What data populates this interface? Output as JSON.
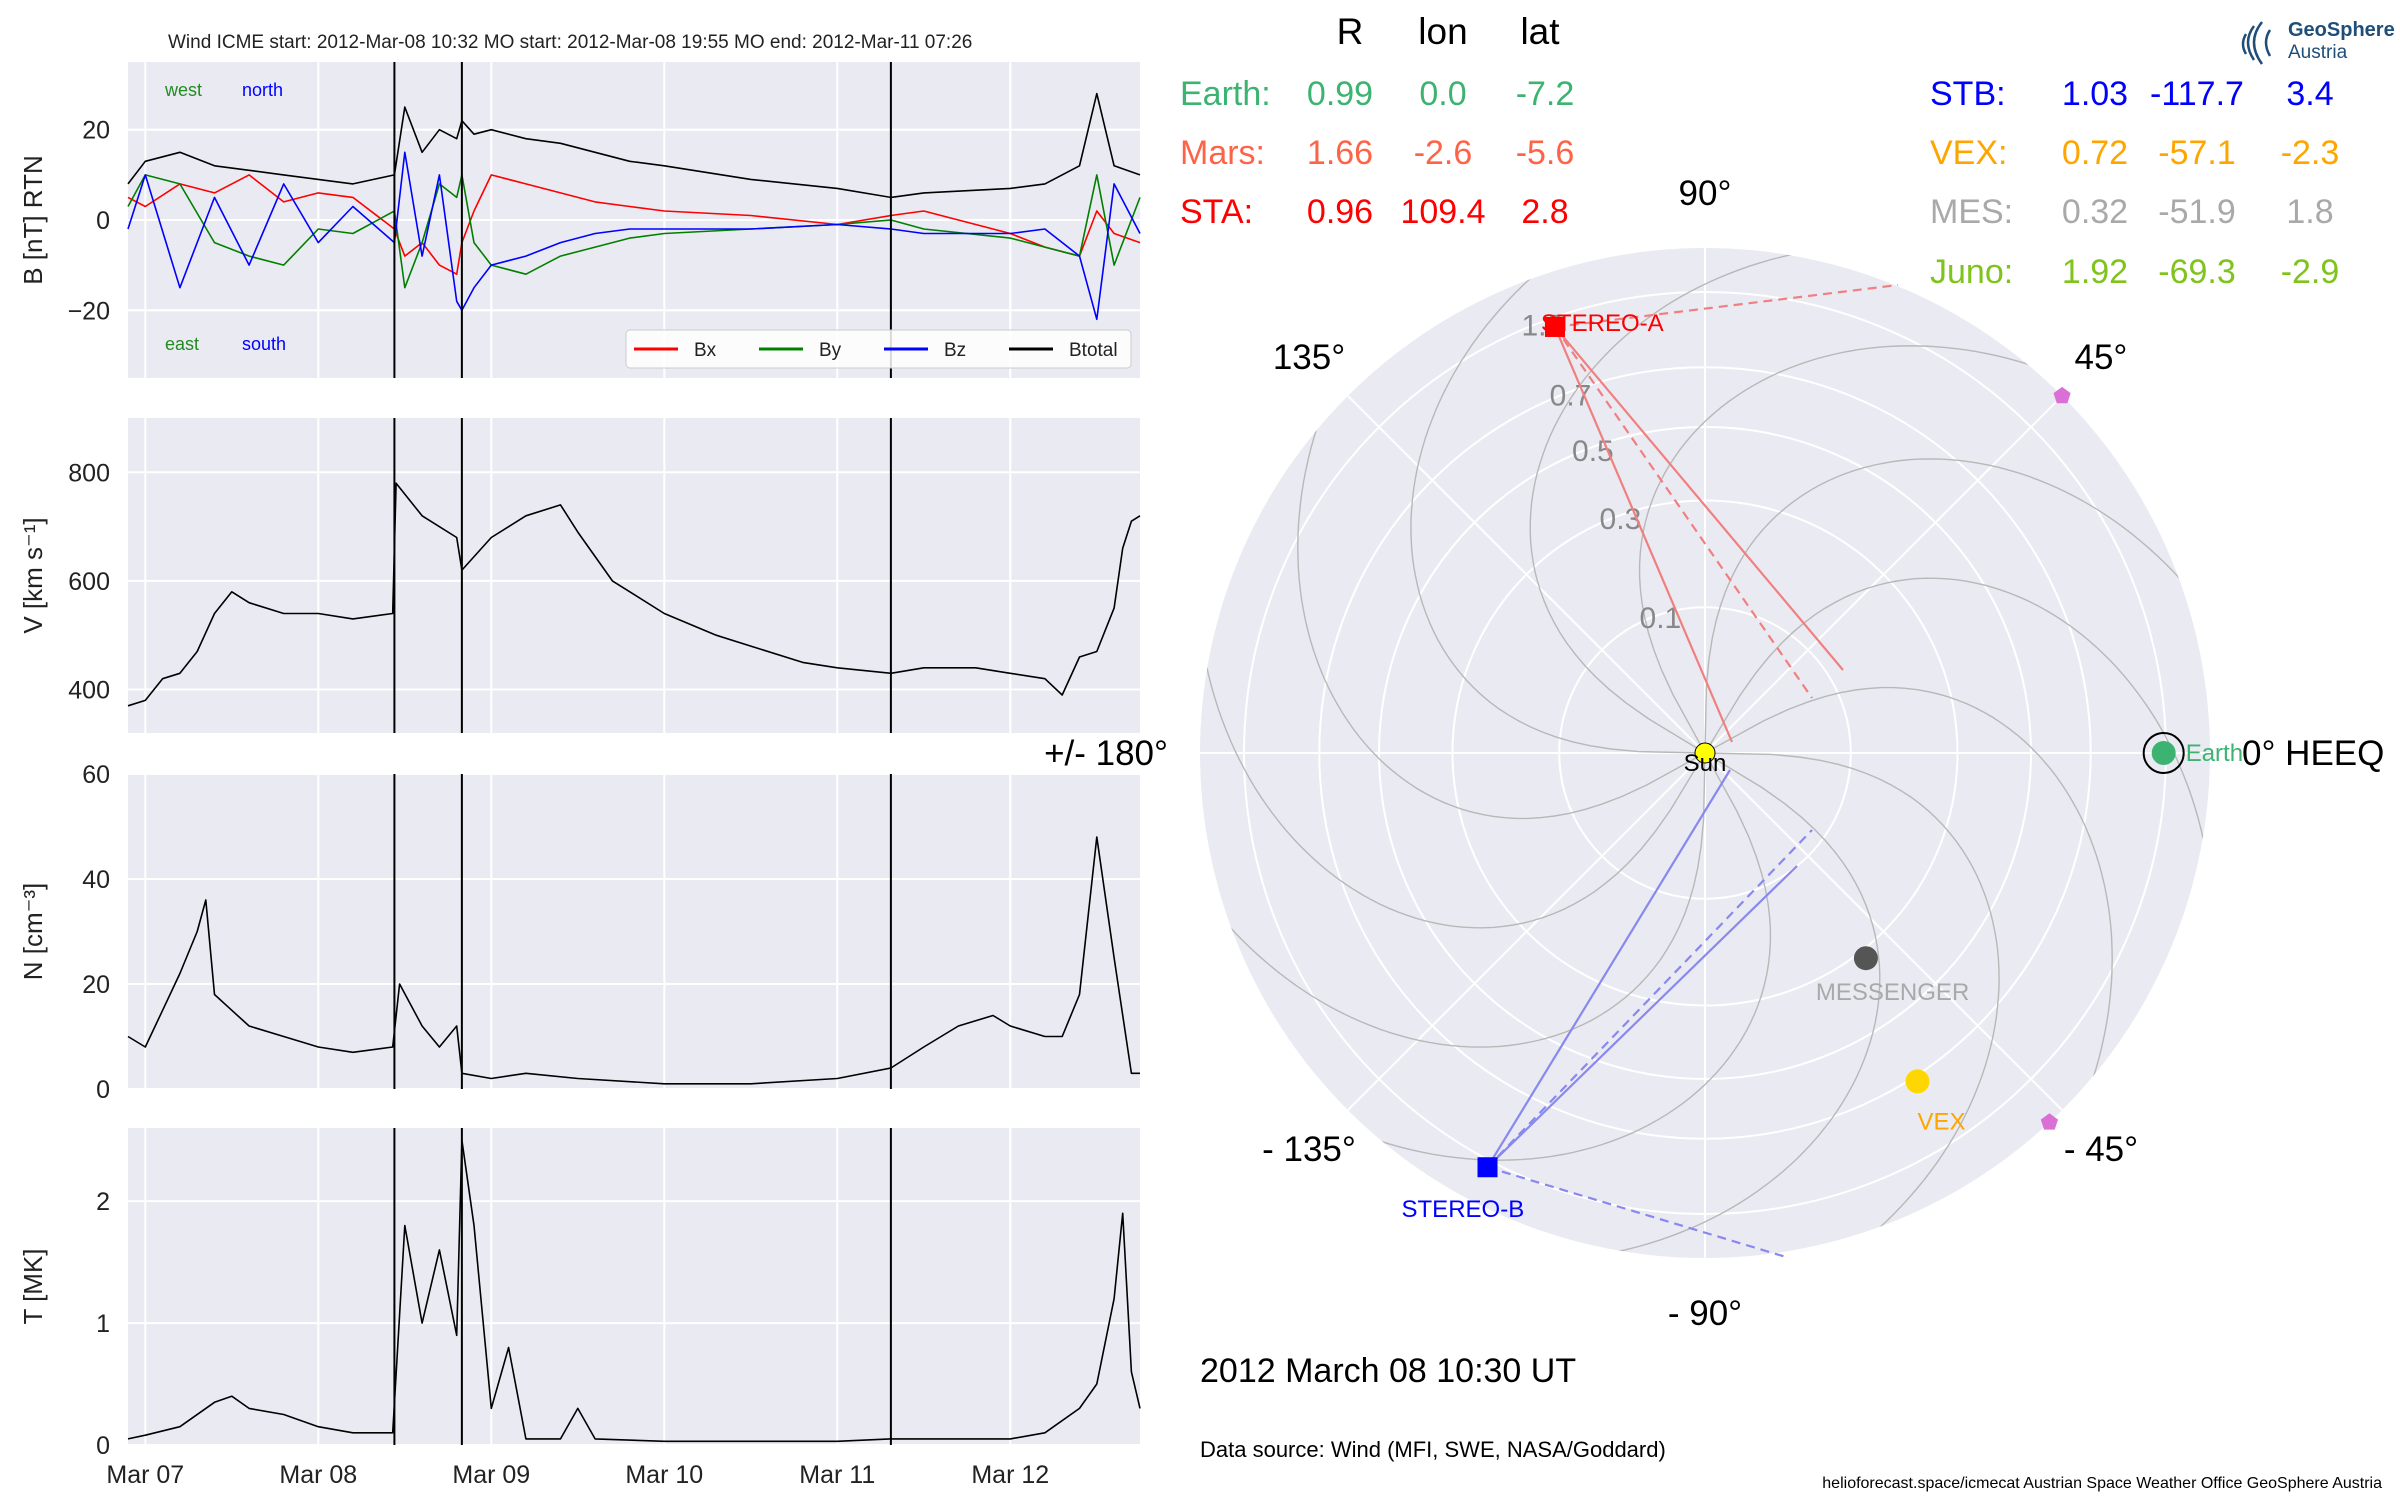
{
  "title": "Wind    ICME start: 2012-Mar-08 10:32   MO start: 2012-Mar-08 19:55   MO end: 2012-Mar-11 07:26",
  "logo": {
    "line1": "GeoSphere",
    "line2": "Austria"
  },
  "date_text": "2012 March 08  10:30 UT",
  "source_text": "Data source: Wind (MFI, SWE, NASA/Goddard)",
  "footer_text": "helioforecast.space/icmecat   Austrian Space Weather Office   GeoSphere Austria",
  "table": {
    "headers": [
      "R",
      "lon",
      "lat"
    ],
    "left": [
      {
        "name": "Earth:",
        "R": "0.99",
        "lon": "0.0",
        "lat": "-7.2",
        "color": "#3cb371"
      },
      {
        "name": "Mars:",
        "R": "1.66",
        "lon": "-2.6",
        "lat": "-5.6",
        "color": "#ff6347"
      },
      {
        "name": "STA:",
        "R": "0.96",
        "lon": "109.4",
        "lat": "2.8",
        "color": "#ff0000"
      }
    ],
    "right": [
      {
        "name": "STB:",
        "R": "1.03",
        "lon": "-117.7",
        "lat": "3.4",
        "color": "#0000ff"
      },
      {
        "name": "VEX:",
        "R": "0.72",
        "lon": "-57.1",
        "lat": "-2.3",
        "color": "#ffa500"
      },
      {
        "name": "MES:",
        "R": "0.32",
        "lon": "-51.9",
        "lat": "1.8",
        "color": "#a9a9a9"
      },
      {
        "name": "Juno:",
        "R": "1.92",
        "lon": "-69.3",
        "lat": "-2.9",
        "color": "#7fc31c"
      }
    ]
  },
  "chart_data": [
    {
      "type": "line",
      "panel": "B",
      "ylabel": "B [nT] RTN",
      "ylim": [
        -35,
        35
      ],
      "yticks": [
        "20",
        "0",
        "−20"
      ],
      "ytick_values": [
        20,
        0,
        -20
      ],
      "xlim": [
        6.9,
        12.75
      ],
      "xticks": [
        "Mar 07",
        "Mar 08",
        "Mar 09",
        "Mar 10",
        "Mar 11",
        "Mar 12"
      ],
      "xtick_values": [
        7,
        8,
        9,
        10,
        11,
        12
      ],
      "vlines": [
        8.44,
        8.83,
        11.31
      ],
      "grid": true,
      "legend_position": "bottom-right",
      "corner_labels": [
        {
          "text": "west",
          "color": "#228b22"
        },
        {
          "text": "north",
          "color": "#0000ff"
        },
        {
          "text": "east",
          "color": "#228b22"
        },
        {
          "text": "south",
          "color": "#0000ff"
        }
      ],
      "series": [
        {
          "name": "Bx",
          "color": "#ff0000",
          "x": [
            6.9,
            7.0,
            7.2,
            7.4,
            7.6,
            7.8,
            8.0,
            8.2,
            8.44,
            8.5,
            8.6,
            8.7,
            8.8,
            8.83,
            8.9,
            9.0,
            9.2,
            9.4,
            9.6,
            9.8,
            10.0,
            10.5,
            11.0,
            11.31,
            11.5,
            12.0,
            12.2,
            12.4,
            12.5,
            12.6,
            12.75
          ],
          "y": [
            5,
            3,
            8,
            6,
            10,
            4,
            6,
            5,
            -2,
            -8,
            -5,
            -10,
            -12,
            -5,
            2,
            10,
            8,
            6,
            4,
            3,
            2,
            1,
            -1,
            1,
            2,
            -3,
            -6,
            -8,
            2,
            -3,
            -5
          ]
        },
        {
          "name": "By",
          "color": "#008000",
          "x": [
            6.9,
            7.0,
            7.2,
            7.4,
            7.6,
            7.8,
            8.0,
            8.2,
            8.44,
            8.5,
            8.6,
            8.7,
            8.8,
            8.83,
            8.9,
            9.0,
            9.2,
            9.4,
            9.6,
            9.8,
            10.0,
            10.5,
            11.0,
            11.31,
            11.5,
            12.0,
            12.2,
            12.4,
            12.5,
            12.6,
            12.75
          ],
          "y": [
            3,
            10,
            8,
            -5,
            -8,
            -10,
            -2,
            -3,
            2,
            -15,
            -5,
            8,
            5,
            10,
            -5,
            -10,
            -12,
            -8,
            -6,
            -4,
            -3,
            -2,
            -1,
            0,
            -2,
            -4,
            -6,
            -8,
            10,
            -10,
            5
          ]
        },
        {
          "name": "Bz",
          "color": "#0000ff",
          "x": [
            6.9,
            7.0,
            7.2,
            7.4,
            7.6,
            7.8,
            8.0,
            8.2,
            8.44,
            8.5,
            8.6,
            8.7,
            8.8,
            8.83,
            8.9,
            9.0,
            9.2,
            9.4,
            9.6,
            9.8,
            10.0,
            10.5,
            11.0,
            11.31,
            11.5,
            12.0,
            12.2,
            12.4,
            12.5,
            12.6,
            12.75
          ],
          "y": [
            -2,
            10,
            -15,
            5,
            -10,
            8,
            -5,
            3,
            -5,
            15,
            -8,
            10,
            -18,
            -20,
            -15,
            -10,
            -8,
            -5,
            -3,
            -2,
            -2,
            -2,
            -1,
            -2,
            -3,
            -3,
            -2,
            -8,
            -22,
            8,
            -3
          ]
        },
        {
          "name": "Btotal",
          "color": "#000000",
          "x": [
            6.9,
            7.0,
            7.2,
            7.4,
            7.6,
            7.8,
            8.0,
            8.2,
            8.44,
            8.5,
            8.6,
            8.7,
            8.8,
            8.83,
            8.9,
            9.0,
            9.2,
            9.4,
            9.6,
            9.8,
            10.0,
            10.5,
            11.0,
            11.31,
            11.5,
            12.0,
            12.2,
            12.4,
            12.5,
            12.6,
            12.75
          ],
          "y": [
            8,
            13,
            15,
            12,
            11,
            10,
            9,
            8,
            10,
            25,
            15,
            20,
            18,
            22,
            19,
            20,
            18,
            17,
            15,
            13,
            12,
            9,
            7,
            5,
            6,
            7,
            8,
            12,
            28,
            12,
            10
          ]
        }
      ]
    },
    {
      "type": "line",
      "panel": "V",
      "ylabel": "V [km s⁻¹]",
      "ylim": [
        320,
        900
      ],
      "yticks": [
        "800",
        "600",
        "400"
      ],
      "ytick_values": [
        800,
        600,
        400
      ],
      "xlim": [
        6.9,
        12.75
      ],
      "vlines": [
        8.44,
        8.83,
        11.31
      ],
      "series": [
        {
          "name": "",
          "color": "#000000",
          "x": [
            6.9,
            7.0,
            7.1,
            7.2,
            7.3,
            7.4,
            7.5,
            7.6,
            7.8,
            8.0,
            8.2,
            8.43,
            8.45,
            8.6,
            8.8,
            8.83,
            9.0,
            9.2,
            9.4,
            9.5,
            9.7,
            10.0,
            10.3,
            10.5,
            10.8,
            11.0,
            11.31,
            11.5,
            11.8,
            12.0,
            12.2,
            12.3,
            12.4,
            12.5,
            12.6,
            12.65,
            12.7,
            12.75
          ],
          "y": [
            370,
            380,
            420,
            430,
            470,
            540,
            580,
            560,
            540,
            540,
            530,
            540,
            780,
            720,
            680,
            620,
            680,
            720,
            740,
            690,
            600,
            540,
            500,
            480,
            450,
            440,
            430,
            440,
            440,
            430,
            420,
            390,
            460,
            470,
            550,
            660,
            710,
            720
          ]
        }
      ]
    },
    {
      "type": "line",
      "panel": "N",
      "ylabel": "N [cm⁻³]",
      "ylim": [
        0,
        60
      ],
      "yticks": [
        "60",
        "40",
        "20",
        "0"
      ],
      "ytick_values": [
        60,
        40,
        20,
        0
      ],
      "xlim": [
        6.9,
        12.75
      ],
      "vlines": [
        8.44,
        8.83,
        11.31
      ],
      "series": [
        {
          "name": "",
          "color": "#000000",
          "x": [
            6.9,
            7.0,
            7.1,
            7.2,
            7.3,
            7.35,
            7.4,
            7.5,
            7.6,
            7.8,
            8.0,
            8.2,
            8.43,
            8.47,
            8.6,
            8.7,
            8.8,
            8.83,
            9.0,
            9.2,
            9.5,
            10.0,
            10.5,
            11.0,
            11.31,
            11.5,
            11.7,
            11.9,
            12.0,
            12.2,
            12.3,
            12.4,
            12.5,
            12.6,
            12.7,
            12.75
          ],
          "y": [
            10,
            8,
            15,
            22,
            30,
            36,
            18,
            15,
            12,
            10,
            8,
            7,
            8,
            20,
            12,
            8,
            12,
            3,
            2,
            3,
            2,
            1,
            1,
            2,
            4,
            8,
            12,
            14,
            12,
            10,
            10,
            18,
            48,
            25,
            3,
            3
          ]
        }
      ]
    },
    {
      "type": "line",
      "panel": "T",
      "ylabel": "T [MK]",
      "ylim": [
        0,
        2.6
      ],
      "yticks": [
        "2",
        "1",
        "0"
      ],
      "ytick_values": [
        2,
        1,
        0
      ],
      "xlim": [
        6.9,
        12.75
      ],
      "vlines": [
        8.44,
        8.83,
        11.31
      ],
      "series": [
        {
          "name": "",
          "color": "#000000",
          "x": [
            6.9,
            7.0,
            7.2,
            7.4,
            7.5,
            7.6,
            7.8,
            8.0,
            8.2,
            8.43,
            8.5,
            8.6,
            8.7,
            8.8,
            8.83,
            8.9,
            9.0,
            9.1,
            9.2,
            9.4,
            9.5,
            9.6,
            10.0,
            10.5,
            11.0,
            11.31,
            11.5,
            12.0,
            12.2,
            12.4,
            12.5,
            12.6,
            12.65,
            12.7,
            12.75
          ],
          "y": [
            0.05,
            0.08,
            0.15,
            0.35,
            0.4,
            0.3,
            0.25,
            0.15,
            0.1,
            0.1,
            1.8,
            1.0,
            1.6,
            0.9,
            2.5,
            1.8,
            0.3,
            0.8,
            0.05,
            0.05,
            0.3,
            0.05,
            0.03,
            0.03,
            0.03,
            0.05,
            0.05,
            0.05,
            0.1,
            0.3,
            0.5,
            1.2,
            1.9,
            0.6,
            0.3
          ]
        }
      ]
    },
    {
      "type": "scatter",
      "panel": "polar",
      "coordinate_system": "HEEQ",
      "rmax": 1.2,
      "rticks": [
        "0.1",
        "0.3",
        "0.5",
        "0.7",
        "1.0"
      ],
      "rtick_values": [
        0.1,
        0.3,
        0.5,
        0.7,
        1.0
      ],
      "angle_labels": [
        {
          "text": "0° HEEQ",
          "angle": 0
        },
        {
          "text": "45°",
          "angle": 45
        },
        {
          "text": "90°",
          "angle": 90
        },
        {
          "text": "135°",
          "angle": 135
        },
        {
          "text": "+/- 180°",
          "angle": 180
        },
        {
          "text": "- 135°",
          "angle": -135
        },
        {
          "text": "- 90°",
          "angle": -90
        },
        {
          "text": "- 45°",
          "angle": -45
        }
      ],
      "bodies": [
        {
          "name": "Sun",
          "r": 0.0,
          "lon": 0,
          "color": "#ffff00",
          "marker": "circle",
          "label_color": "#000000"
        },
        {
          "name": "Earth",
          "r": 0.99,
          "lon": 0.0,
          "color": "#3cb371",
          "marker": "circle",
          "label_color": "#3cb371"
        },
        {
          "name": "STEREO-A",
          "r": 0.96,
          "lon": 109.4,
          "color": "#ff0000",
          "marker": "square",
          "label_color": "#ff0000"
        },
        {
          "name": "STEREO-B",
          "r": 1.03,
          "lon": -117.7,
          "color": "#0000ff",
          "marker": "square",
          "label_color": "#0000ff"
        },
        {
          "name": "MESSENGER",
          "r": 0.32,
          "lon": -51.9,
          "color": "#555555",
          "marker": "circle",
          "label_color": "#a9a9a9"
        },
        {
          "name": "VEX",
          "r": 0.72,
          "lon": -57.1,
          "color": "#ffd700",
          "marker": "circle",
          "label_color": "#ffa500"
        },
        {
          "name": "",
          "r": 1.2,
          "lon": 45,
          "color": "#da70d6",
          "marker": "pentagon",
          "label_color": "#da70d6"
        },
        {
          "name": "",
          "r": 1.2,
          "lon": -47,
          "color": "#da70d6",
          "marker": "pentagon",
          "label_color": "#da70d6"
        }
      ]
    }
  ]
}
